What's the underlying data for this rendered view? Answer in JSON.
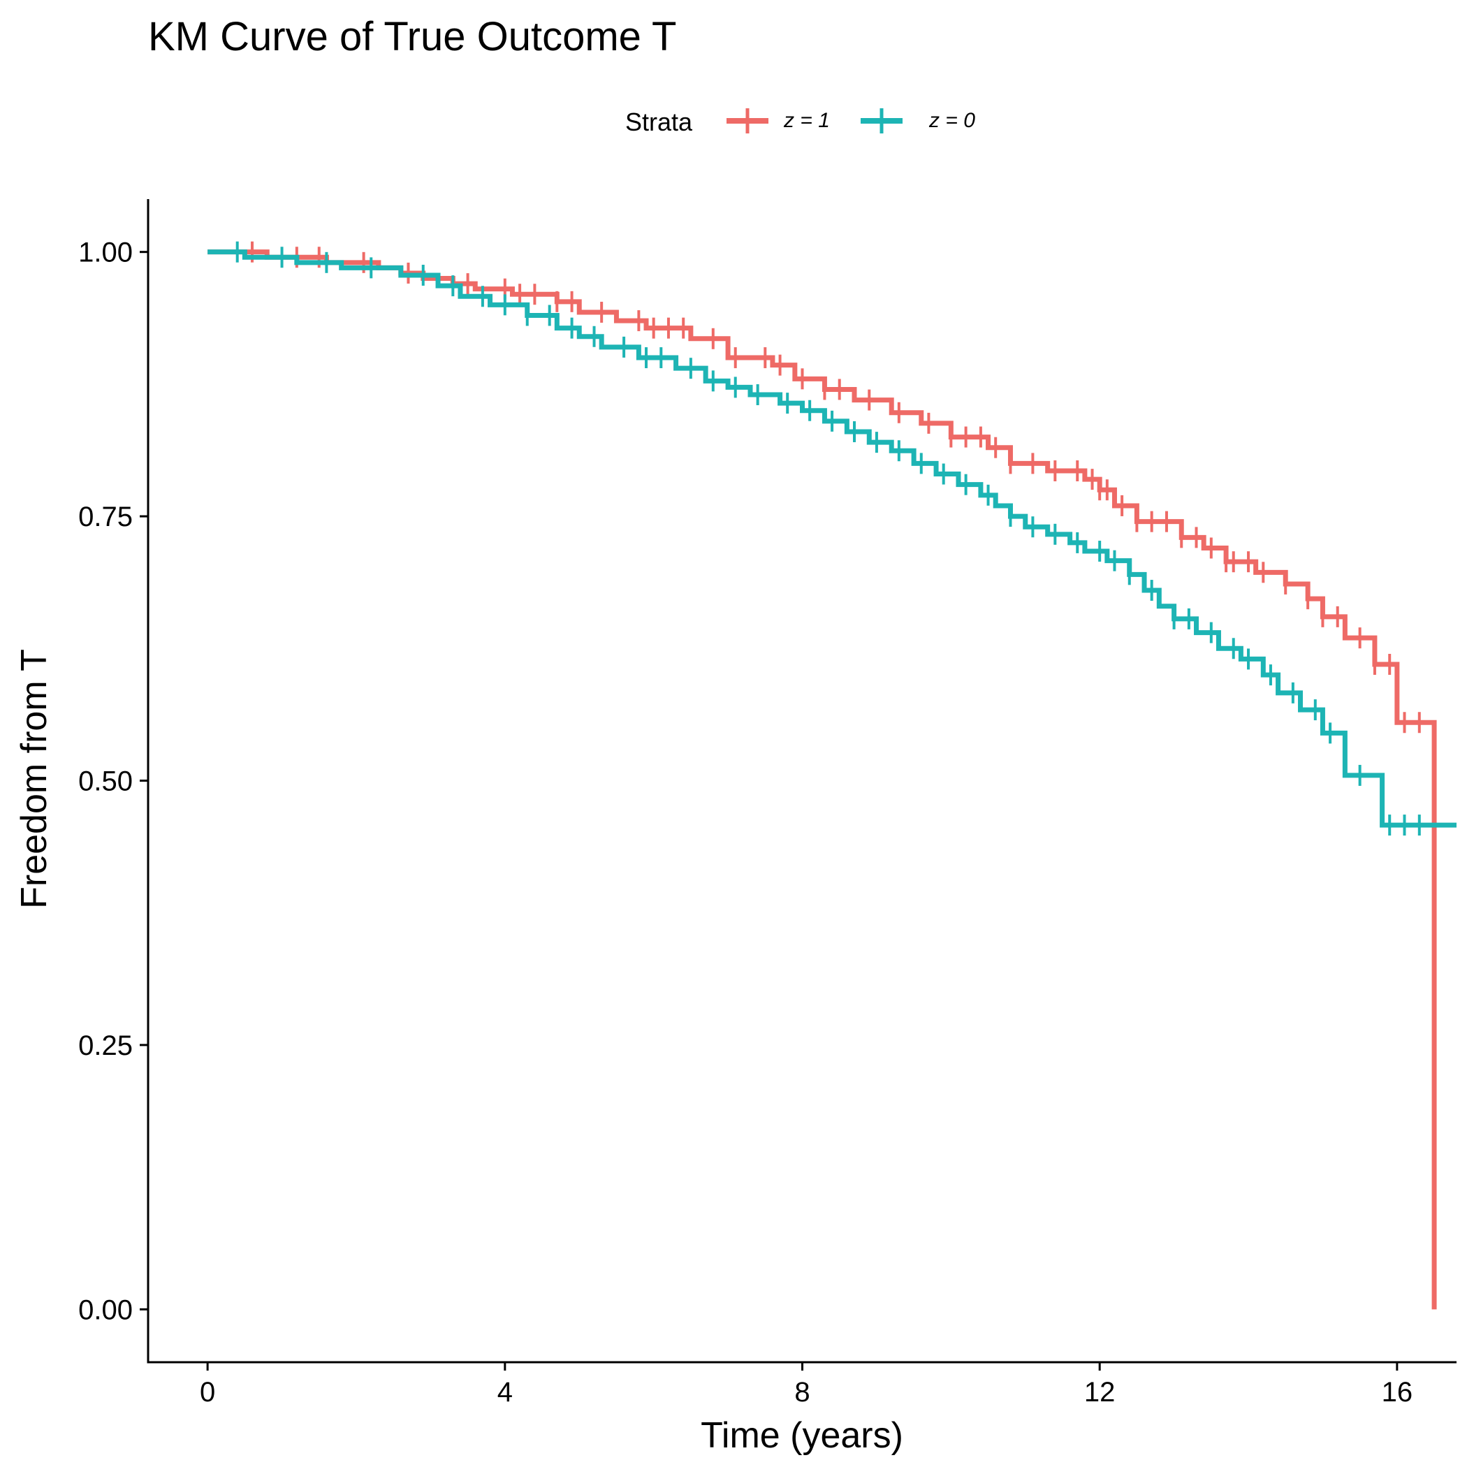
{
  "chart_data": {
    "type": "line",
    "title": "KM Curve of True Outcome T",
    "xlabel": "Time (years)",
    "ylabel": "Freedom from T",
    "xlim": [
      -0.8,
      16.8
    ],
    "ylim": [
      -0.05,
      1.05
    ],
    "x_ticks": [
      0,
      4,
      8,
      12,
      16
    ],
    "x_tick_labels": [
      "0",
      "4",
      "8",
      "12",
      "16"
    ],
    "y_ticks": [
      0,
      0.25,
      0.5,
      0.75,
      1.0
    ],
    "y_tick_labels": [
      "0.00",
      "0.25",
      "0.50",
      "0.75",
      "1.00"
    ],
    "legend": {
      "title": "Strata",
      "position": "top"
    },
    "series": [
      {
        "name": "z = 1",
        "color": "#EE6A66",
        "x": [
          0,
          0.8,
          1.6,
          2.3,
          2.6,
          2.9,
          3.3,
          3.6,
          4.1,
          4.7,
          5.0,
          5.5,
          5.9,
          6.5,
          7.0,
          7.6,
          7.9,
          8.3,
          8.7,
          9.2,
          9.6,
          10.0,
          10.5,
          10.8,
          11.3,
          11.8,
          12.0,
          12.2,
          12.5,
          13.1,
          13.4,
          13.7,
          14.1,
          14.5,
          14.8,
          15.0,
          15.3,
          15.7,
          16.0,
          16.5
        ],
        "y": [
          1.0,
          0.995,
          0.99,
          0.985,
          0.98,
          0.975,
          0.97,
          0.965,
          0.96,
          0.953,
          0.943,
          0.935,
          0.928,
          0.918,
          0.9,
          0.893,
          0.88,
          0.87,
          0.86,
          0.848,
          0.838,
          0.825,
          0.815,
          0.8,
          0.793,
          0.785,
          0.775,
          0.76,
          0.745,
          0.73,
          0.72,
          0.707,
          0.697,
          0.686,
          0.672,
          0.655,
          0.635,
          0.61,
          0.555,
          0.505
        ],
        "final_drop": {
          "x": 16.5,
          "y": 0.0
        },
        "censor_x": [
          0.6,
          1.2,
          1.5,
          2.1,
          2.7,
          3.5,
          4.0,
          4.2,
          4.4,
          4.7,
          4.9,
          5.3,
          5.8,
          6.0,
          6.2,
          6.4,
          6.8,
          7.1,
          7.5,
          7.7,
          8.0,
          8.3,
          8.5,
          8.9,
          9.3,
          9.7,
          10.0,
          10.2,
          10.4,
          10.6,
          10.8,
          11.1,
          11.4,
          11.7,
          11.9,
          12.0,
          12.1,
          12.3,
          12.5,
          12.7,
          12.9,
          13.1,
          13.3,
          13.5,
          13.7,
          13.8,
          14.0,
          14.2,
          14.5,
          14.8,
          15.0,
          15.2,
          15.5,
          15.7,
          15.9,
          16.1,
          16.3
        ]
      },
      {
        "name": "z = 0",
        "color": "#1DB4B4",
        "x": [
          0,
          0.5,
          1.2,
          1.8,
          2.6,
          3.1,
          3.4,
          3.8,
          4.3,
          4.7,
          5.0,
          5.3,
          5.8,
          6.3,
          6.7,
          7.0,
          7.3,
          7.7,
          8.0,
          8.3,
          8.6,
          8.9,
          9.2,
          9.5,
          9.8,
          10.1,
          10.4,
          10.6,
          10.8,
          11.0,
          11.3,
          11.6,
          11.8,
          12.1,
          12.4,
          12.6,
          12.8,
          13.0,
          13.3,
          13.6,
          13.9,
          14.2,
          14.4,
          14.7,
          15.0,
          15.3,
          15.8
        ],
        "y": [
          1.0,
          0.995,
          0.99,
          0.985,
          0.978,
          0.968,
          0.958,
          0.95,
          0.94,
          0.928,
          0.92,
          0.91,
          0.9,
          0.89,
          0.878,
          0.872,
          0.865,
          0.857,
          0.85,
          0.84,
          0.83,
          0.82,
          0.812,
          0.8,
          0.79,
          0.78,
          0.77,
          0.76,
          0.75,
          0.74,
          0.733,
          0.725,
          0.717,
          0.708,
          0.695,
          0.68,
          0.665,
          0.653,
          0.64,
          0.625,
          0.615,
          0.6,
          0.583,
          0.567,
          0.545,
          0.505,
          0.458
        ],
        "censor_x": [
          0.4,
          1.0,
          1.6,
          2.2,
          2.9,
          3.3,
          3.7,
          4.0,
          4.3,
          4.6,
          4.9,
          5.2,
          5.6,
          5.9,
          6.1,
          6.5,
          6.8,
          7.1,
          7.4,
          7.8,
          8.1,
          8.4,
          8.7,
          9.0,
          9.3,
          9.6,
          9.9,
          10.2,
          10.5,
          10.8,
          11.1,
          11.4,
          11.7,
          12.0,
          12.2,
          12.4,
          12.7,
          13.0,
          13.2,
          13.5,
          13.8,
          14.0,
          14.3,
          14.6,
          14.9,
          15.1,
          15.5,
          15.9,
          16.1,
          16.3
        ]
      }
    ]
  }
}
